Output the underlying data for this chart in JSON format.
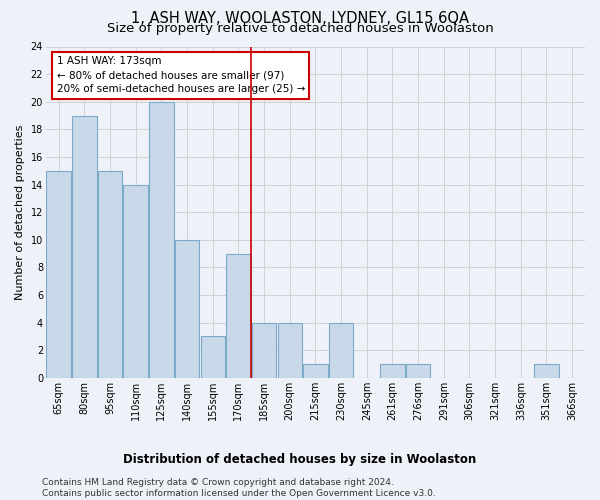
{
  "title": "1, ASH WAY, WOOLASTON, LYDNEY, GL15 6QA",
  "subtitle": "Size of property relative to detached houses in Woolaston",
  "xlabel": "Distribution of detached houses by size in Woolaston",
  "ylabel": "Number of detached properties",
  "categories": [
    "65sqm",
    "80sqm",
    "95sqm",
    "110sqm",
    "125sqm",
    "140sqm",
    "155sqm",
    "170sqm",
    "185sqm",
    "200sqm",
    "215sqm",
    "230sqm",
    "245sqm",
    "261sqm",
    "276sqm",
    "291sqm",
    "306sqm",
    "321sqm",
    "336sqm",
    "351sqm",
    "366sqm"
  ],
  "values": [
    15,
    19,
    15,
    14,
    20,
    10,
    3,
    9,
    4,
    4,
    1,
    4,
    0,
    1,
    1,
    0,
    0,
    0,
    0,
    1,
    0
  ],
  "bar_color": "#c8d8e8",
  "bar_edgecolor": "#7aaac8",
  "bar_linewidth": 0.8,
  "redline_index": 7.5,
  "annotation_text": "1 ASH WAY: 173sqm\n← 80% of detached houses are smaller (97)\n20% of semi-detached houses are larger (25) →",
  "annotation_box_color": "#ffffff",
  "annotation_box_edgecolor": "#cc0000",
  "ylim": [
    0,
    24
  ],
  "yticks": [
    0,
    2,
    4,
    6,
    8,
    10,
    12,
    14,
    16,
    18,
    20,
    22,
    24
  ],
  "grid_color": "#cccccc",
  "background_color": "#eef2f8",
  "axes_background": "#eef2f8",
  "footer_text": "Contains HM Land Registry data © Crown copyright and database right 2024.\nContains public sector information licensed under the Open Government Licence v3.0.",
  "title_fontsize": 10.5,
  "subtitle_fontsize": 9.5,
  "xlabel_fontsize": 8.5,
  "ylabel_fontsize": 8,
  "tick_fontsize": 7,
  "annotation_fontsize": 7.5,
  "footer_fontsize": 6.5
}
